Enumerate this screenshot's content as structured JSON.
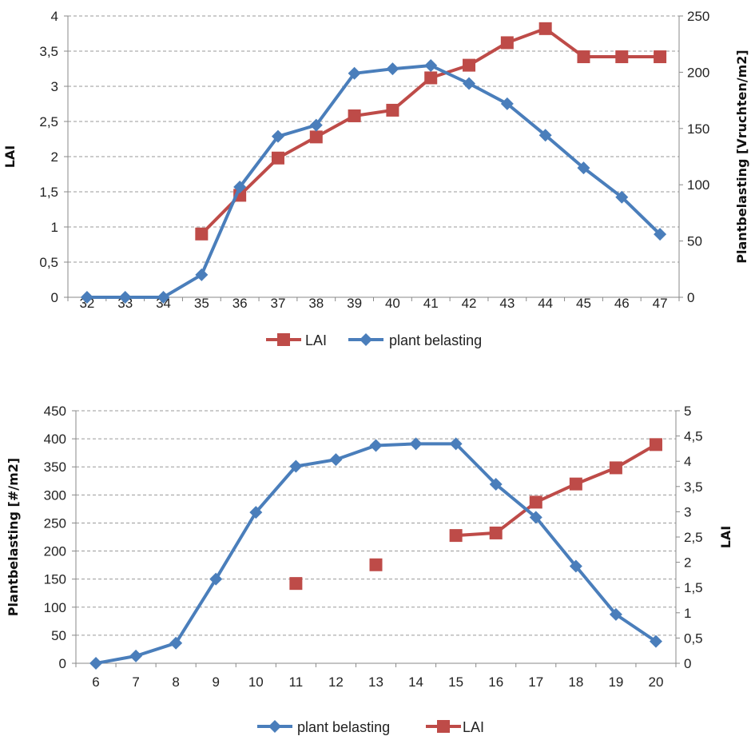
{
  "colors": {
    "blue": "#4a7ebb",
    "red": "#be4b48",
    "grid": "#9a9a9a",
    "axis": "#888888"
  },
  "chart_data": [
    {
      "type": "line",
      "x": [
        32,
        33,
        34,
        35,
        36,
        37,
        38,
        39,
        40,
        41,
        42,
        43,
        44,
        45,
        46,
        47
      ],
      "series": [
        {
          "name": "LAI",
          "axis": "left",
          "marker": "square",
          "values": [
            null,
            null,
            null,
            0.9,
            1.45,
            1.98,
            2.28,
            2.58,
            2.66,
            3.12,
            3.3,
            3.62,
            3.82,
            3.42,
            3.42,
            3.42
          ]
        },
        {
          "name": "plant belasting",
          "axis": "right",
          "marker": "diamond",
          "values": [
            0,
            0,
            0,
            20,
            98,
            143,
            153,
            199,
            203,
            206,
            190,
            172,
            144,
            115,
            89,
            56
          ]
        }
      ],
      "ylabel": "LAI",
      "y2label": "Plantbelasting [Vruchten/m2]",
      "ylim": [
        0,
        4
      ],
      "yticks": [
        "0",
        "0,5",
        "1",
        "1,5",
        "2",
        "2,5",
        "3",
        "3,5",
        "4"
      ],
      "y2lim": [
        0,
        250
      ],
      "y2ticks": [
        "0",
        "50",
        "100",
        "150",
        "200",
        "250"
      ],
      "grid": true,
      "legend": "bottom",
      "legend_order": [
        "LAI",
        "plant belasting"
      ]
    },
    {
      "type": "line",
      "x": [
        6,
        7,
        8,
        9,
        10,
        11,
        12,
        13,
        14,
        15,
        16,
        17,
        18,
        19,
        20
      ],
      "series": [
        {
          "name": "plant belasting",
          "axis": "left",
          "marker": "diamond",
          "values": [
            0,
            13,
            36,
            150,
            269,
            351,
            363,
            388,
            391,
            391,
            319,
            260,
            173,
            87,
            39
          ]
        },
        {
          "name": "LAI",
          "axis": "right",
          "marker": "square",
          "values": [
            null,
            null,
            null,
            null,
            null,
            1.58,
            null,
            1.95,
            null,
            2.53,
            2.58,
            3.19,
            3.55,
            3.87,
            4.33
          ]
        }
      ],
      "ylabel": "Plantbelasting [#/m2]",
      "y2label": "LAI",
      "ylim": [
        0,
        450
      ],
      "yticks": [
        "0",
        "50",
        "100",
        "150",
        "200",
        "250",
        "300",
        "350",
        "400",
        "450"
      ],
      "y2lim": [
        0,
        5
      ],
      "y2ticks": [
        "0",
        "0,5",
        "1",
        "1,5",
        "2",
        "2,5",
        "3",
        "3,5",
        "4",
        "4,5",
        "5"
      ],
      "grid": true,
      "legend": "bottom",
      "legend_order": [
        "plant belasting",
        "LAI"
      ]
    }
  ]
}
